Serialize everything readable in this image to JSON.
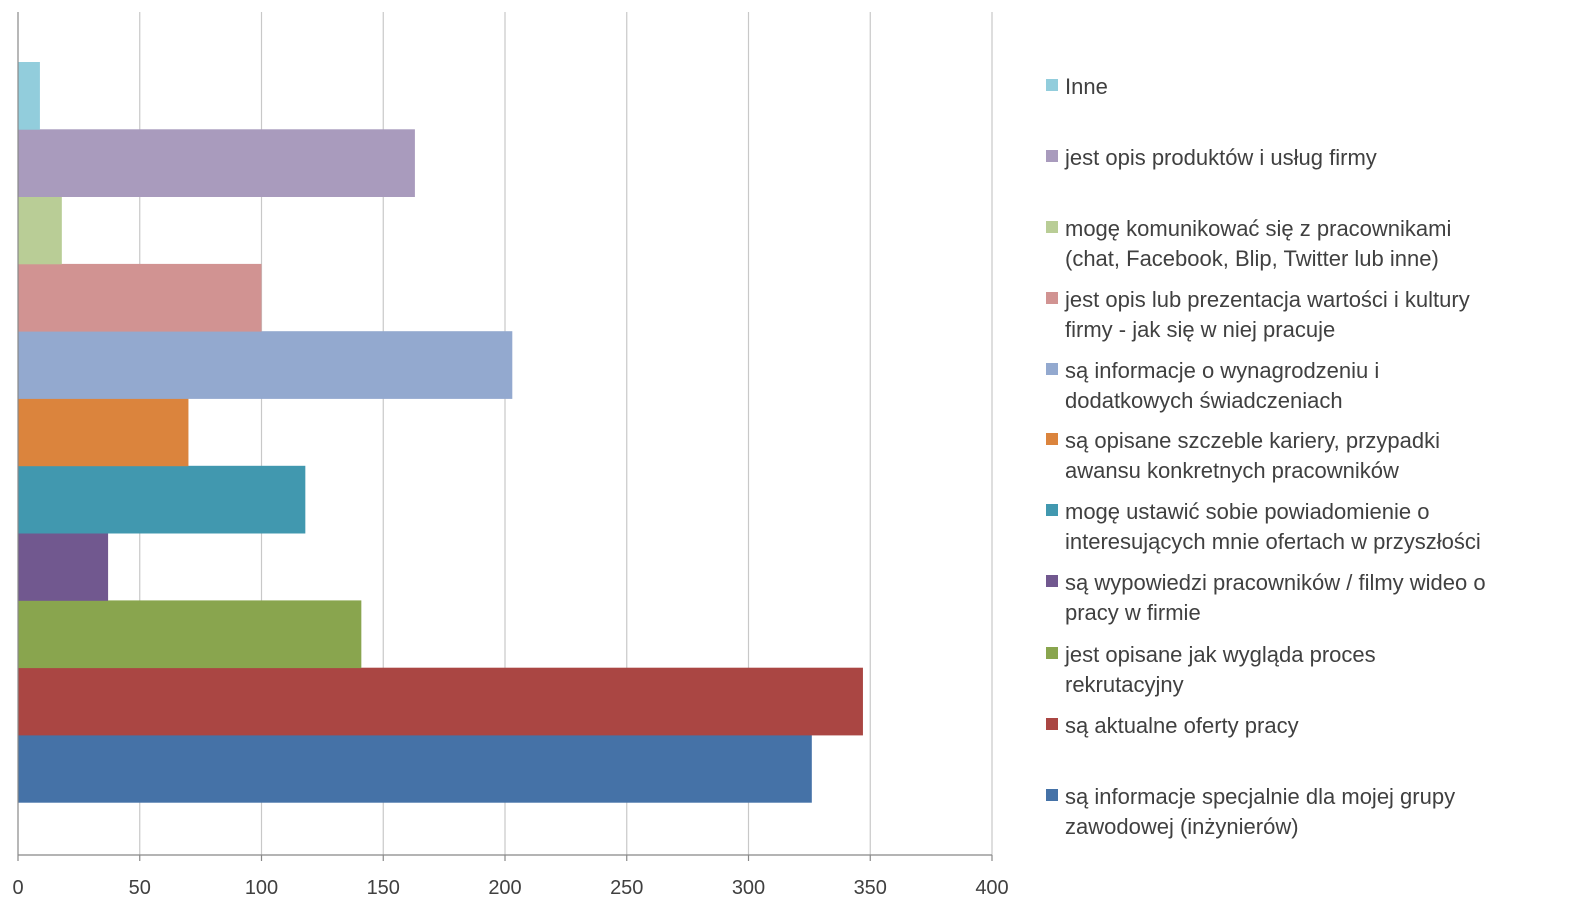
{
  "chart_data": {
    "type": "bar",
    "orientation": "horizontal",
    "stacked": false,
    "xlim": [
      0,
      400
    ],
    "x_ticks": [
      "0",
      "50",
      "100",
      "150",
      "200",
      "250",
      "300",
      "350",
      "400"
    ],
    "grid": "vertical",
    "legend_position": "right",
    "series": [
      {
        "name": "są informacje specjalnie dla mojej grupy zawodowej (inżynierów)",
        "value": 326,
        "color": "#4572A7"
      },
      {
        "name": "są aktualne oferty pracy",
        "value": 347,
        "color": "#AA4643"
      },
      {
        "name": "jest opisane jak wygląda proces rekrutacyjny",
        "value": 141,
        "color": "#89A54E"
      },
      {
        "name": "są wypowiedzi pracowników / filmy wideo o pracy w firmie",
        "value": 37,
        "color": "#71588F"
      },
      {
        "name": "mogę ustawić sobie powiadomienie o interesujących mnie ofertach w przyszłości",
        "value": 118,
        "color": "#4198AF"
      },
      {
        "name": "są opisane szczeble kariery, przypadki awansu konkretnych pracowników",
        "value": 70,
        "color": "#DB843D"
      },
      {
        "name": "są informacje o wynagrodzeniu i dodatkowych świadczeniach",
        "value": 203,
        "color": "#93A9CF"
      },
      {
        "name": "jest opis lub prezentacja wartości i kultury firmy - jak się w niej pracuje",
        "value": 100,
        "color": "#D19392"
      },
      {
        "name": "mogę komunikować się z pracownikami (chat, Facebook, Blip, Twitter lub inne)",
        "value": 18,
        "color": "#B9CD96"
      },
      {
        "name": "jest opis produktów i usług firmy",
        "value": 163,
        "color": "#A99BBD"
      },
      {
        "name": "Inne",
        "value": 9,
        "color": "#92CDDC"
      }
    ]
  },
  "legend": [
    {
      "line1": "Inne",
      "line2": "",
      "color": "#92CDDC"
    },
    {
      "line1": "jest opis produktów i usług firmy",
      "line2": "",
      "color": "#A99BBD"
    },
    {
      "line1": "mogę komunikować się z pracownikami",
      "line2": "(chat, Facebook, Blip, Twitter lub inne)",
      "color": "#B9CD96"
    },
    {
      "line1": "jest opis lub prezentacja wartości i kultury",
      "line2": "firmy - jak się w niej pracuje",
      "color": "#D19392"
    },
    {
      "line1": "są informacje o wynagrodzeniu i",
      "line2": "dodatkowych świadczeniach",
      "color": "#93A9CF"
    },
    {
      "line1": "są opisane szczeble kariery, przypadki",
      "line2": "awansu konkretnych pracowników",
      "color": "#DB843D"
    },
    {
      "line1": "mogę ustawić sobie powiadomienie o",
      "line2": "interesujących mnie ofertach w przyszłości",
      "color": "#4198AF"
    },
    {
      "line1": "są wypowiedzi pracowników / filmy wideo o",
      "line2": "pracy w firmie",
      "color": "#71588F"
    },
    {
      "line1": "jest opisane jak wygląda proces",
      "line2": "rekrutacyjny",
      "color": "#89A54E"
    },
    {
      "line1": "są aktualne oferty pracy",
      "line2": "",
      "color": "#AA4643"
    },
    {
      "line1": "są informacje specjalnie dla mojej grupy",
      "line2": "zawodowej (inżynierów)",
      "color": "#4572A7"
    }
  ]
}
